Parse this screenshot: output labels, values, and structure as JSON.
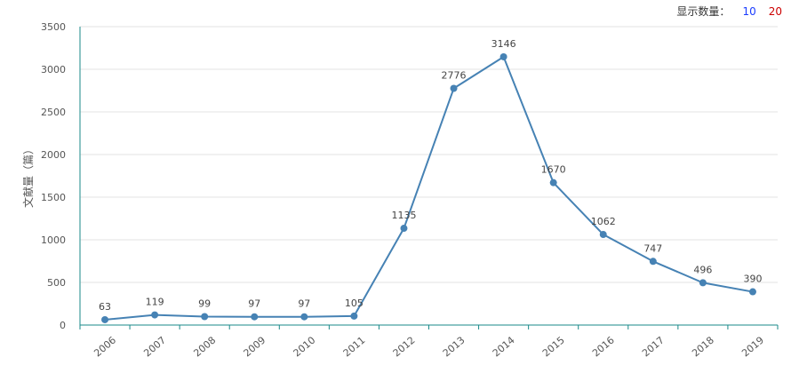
{
  "display_control": {
    "label": "显示数量：",
    "options": [
      {
        "text": "10",
        "color": "#1a3cff"
      },
      {
        "text": "20",
        "color": "#cc0000"
      }
    ]
  },
  "chart_data": {
    "type": "line",
    "title": "",
    "xlabel": "",
    "ylabel": "文献量（篇）",
    "categories": [
      "2006",
      "2007",
      "2008",
      "2009",
      "2010",
      "2011",
      "2012",
      "2013",
      "2014",
      "2015",
      "2016",
      "2017",
      "2018",
      "2019"
    ],
    "values": [
      63,
      119,
      99,
      97,
      97,
      105,
      1135,
      2776,
      3146,
      1670,
      1062,
      747,
      496,
      390
    ],
    "ylim": [
      0,
      3500
    ],
    "yticks": [
      0,
      500,
      1000,
      1500,
      2000,
      2500,
      3000,
      3500
    ],
    "grid": true,
    "line_color": "#4682b4",
    "axis_color": "#1a8a8a"
  }
}
